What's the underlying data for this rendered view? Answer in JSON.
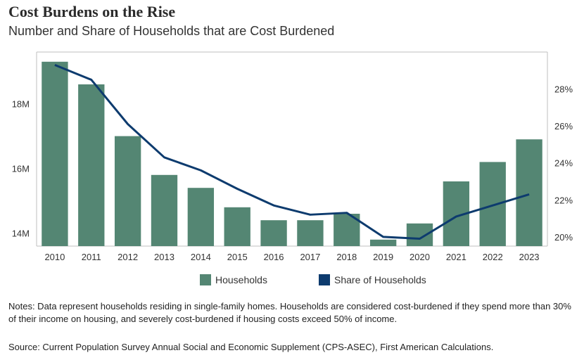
{
  "title": "Cost Burdens on the Rise",
  "subtitle": "Number and Share of Households that are Cost Burdened",
  "colors": {
    "bars": "#548673",
    "line": "#0d3b6e",
    "axis": "#bfbfbf"
  },
  "chart_data": {
    "type": "bar",
    "categories": [
      "2010",
      "2011",
      "2012",
      "2013",
      "2014",
      "2015",
      "2016",
      "2017",
      "2018",
      "2019",
      "2020",
      "2021",
      "2022",
      "2023"
    ],
    "series": [
      {
        "name": "Households",
        "type": "bar",
        "axis": "left",
        "values": [
          19.3,
          18.6,
          17.0,
          15.8,
          15.4,
          14.8,
          14.4,
          14.4,
          14.6,
          13.8,
          14.3,
          15.6,
          16.2,
          16.9
        ]
      },
      {
        "name": "Share of Households",
        "type": "line",
        "axis": "right",
        "values": [
          29.3,
          28.5,
          26.1,
          24.3,
          23.6,
          22.6,
          21.7,
          21.2,
          21.3,
          20.0,
          19.9,
          21.1,
          21.7,
          22.3
        ]
      }
    ],
    "left_axis": {
      "min": 13.6,
      "max": 19.6,
      "ticks": [
        14,
        16,
        18
      ],
      "tick_labels": [
        "14M",
        "16M",
        "18M"
      ]
    },
    "right_axis": {
      "min": 19.5,
      "max": 30.0,
      "ticks": [
        20,
        22,
        24,
        26,
        28
      ],
      "tick_labels": [
        "20%",
        "22%",
        "24%",
        "26%",
        "28%"
      ]
    },
    "legend": {
      "position": "bottom",
      "items": [
        "Households",
        "Share of Households"
      ]
    }
  },
  "notes": "Notes: Data represent households residing in single-family homes. Households are considered cost-burdened if they spend more than 30% of their income on housing, and severely cost-burdened if housing costs exceed 50% of income.",
  "source": "Source: Current Population Survey Annual Social and Economic Supplement (CPS-ASEC), First American Calculations."
}
